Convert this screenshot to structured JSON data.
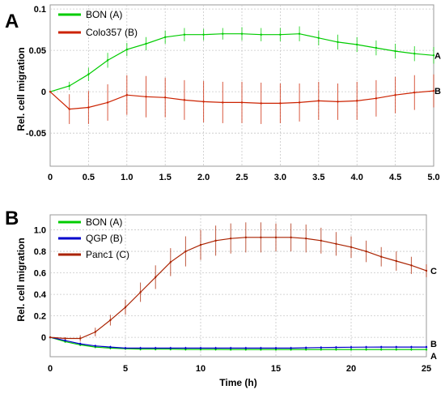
{
  "chart_data": [
    {
      "panel_label": "A",
      "type": "line",
      "xlabel": "",
      "ylabel": "Rel. cell migration",
      "xlim": [
        0,
        5
      ],
      "ylim": [
        -0.09,
        0.105
      ],
      "x_ticks": [
        "0",
        "0.5",
        "1.0",
        "1.5",
        "2.0",
        "2.5",
        "3.0",
        "3.5",
        "4.0",
        "4.5",
        "5.0"
      ],
      "x_tick_values": [
        0,
        0.5,
        1,
        1.5,
        2,
        2.5,
        3,
        3.5,
        4,
        4.5,
        5
      ],
      "y_ticks": [
        "0.1",
        "0.05",
        "0",
        "-0.05"
      ],
      "y_tick_values": [
        0.1,
        0.05,
        0,
        -0.05
      ],
      "grid": true,
      "legend_position": "top-left",
      "series": [
        {
          "name": "BON (A)",
          "end_label": "A",
          "color": "#00cc00",
          "x": [
            0,
            0.25,
            0.5,
            0.75,
            1,
            1.25,
            1.5,
            1.75,
            2,
            2.25,
            2.5,
            2.75,
            3,
            3.25,
            3.5,
            3.75,
            4,
            4.25,
            4.5,
            4.75,
            5
          ],
          "y": [
            0,
            0.007,
            0.021,
            0.038,
            0.051,
            0.058,
            0.066,
            0.069,
            0.069,
            0.07,
            0.07,
            0.069,
            0.069,
            0.07,
            0.065,
            0.06,
            0.057,
            0.053,
            0.049,
            0.046,
            0.044
          ],
          "error": [
            0,
            0.005,
            0.008,
            0.009,
            0.008,
            0.008,
            0.008,
            0.008,
            0.007,
            0.007,
            0.008,
            0.008,
            0.008,
            0.009,
            0.009,
            0.009,
            0.009,
            0.009,
            0.009,
            0.009,
            0.01
          ]
        },
        {
          "name": "Colo357 (B)",
          "end_label": "B",
          "color": "#cc2200",
          "x": [
            0,
            0.25,
            0.5,
            0.75,
            1,
            1.25,
            1.5,
            1.75,
            2,
            2.25,
            2.5,
            2.75,
            3,
            3.25,
            3.5,
            3.75,
            4,
            4.25,
            4.5,
            4.75,
            5
          ],
          "y": [
            0,
            -0.021,
            -0.019,
            -0.013,
            -0.004,
            -0.006,
            -0.007,
            -0.01,
            -0.012,
            -0.013,
            -0.013,
            -0.014,
            -0.014,
            -0.013,
            -0.011,
            -0.012,
            -0.011,
            -0.008,
            -0.004,
            -0.001,
            0.001
          ],
          "error": [
            0,
            0.018,
            0.02,
            0.022,
            0.024,
            0.025,
            0.024,
            0.024,
            0.025,
            0.025,
            0.025,
            0.025,
            0.024,
            0.023,
            0.023,
            0.022,
            0.023,
            0.022,
            0.022,
            0.021,
            0.02
          ]
        }
      ]
    },
    {
      "panel_label": "B",
      "type": "line",
      "xlabel": "Time (h)",
      "ylabel": "Rel. cell migration",
      "xlim": [
        0,
        25
      ],
      "ylim": [
        -0.18,
        1.14
      ],
      "x_ticks": [
        "0",
        "5",
        "10",
        "15",
        "20",
        "25"
      ],
      "x_tick_values": [
        0,
        5,
        10,
        15,
        20,
        25
      ],
      "y_ticks": [
        "1.0",
        "0.8",
        "0.6",
        "0.4",
        "0.2",
        "0"
      ],
      "y_tick_values": [
        1.0,
        0.8,
        0.6,
        0.4,
        0.2,
        0
      ],
      "grid": true,
      "legend_position": "top-left",
      "series": [
        {
          "name": "BON (A)",
          "end_label": "A",
          "color": "#00cc00",
          "x": [
            0,
            1,
            2,
            3,
            4,
            5,
            6,
            7,
            8,
            9,
            10,
            11,
            12,
            13,
            14,
            15,
            16,
            17,
            18,
            19,
            20,
            21,
            22,
            23,
            24,
            25
          ],
          "y": [
            0,
            -0.04,
            -0.07,
            -0.09,
            -0.1,
            -0.105,
            -0.11,
            -0.11,
            -0.11,
            -0.112,
            -0.112,
            -0.112,
            -0.113,
            -0.113,
            -0.113,
            -0.113,
            -0.113,
            -0.113,
            -0.113,
            -0.113,
            -0.113,
            -0.113,
            -0.113,
            -0.113,
            -0.113,
            -0.113
          ],
          "error": [
            0,
            0.01,
            0.012,
            0.012,
            0.012,
            0.012,
            0.012,
            0.012,
            0.012,
            0.012,
            0.012,
            0.012,
            0.012,
            0.012,
            0.012,
            0.012,
            0.012,
            0.012,
            0.012,
            0.012,
            0.012,
            0.012,
            0.012,
            0.012,
            0.012,
            0.012
          ]
        },
        {
          "name": "QGP (B)",
          "end_label": "B",
          "color": "#0000cc",
          "x": [
            0,
            1,
            2,
            3,
            4,
            5,
            6,
            7,
            8,
            9,
            10,
            11,
            12,
            13,
            14,
            15,
            16,
            17,
            18,
            19,
            20,
            21,
            22,
            23,
            24,
            25
          ],
          "y": [
            0,
            -0.03,
            -0.06,
            -0.08,
            -0.09,
            -0.1,
            -0.1,
            -0.1,
            -0.1,
            -0.1,
            -0.1,
            -0.1,
            -0.1,
            -0.1,
            -0.1,
            -0.1,
            -0.1,
            -0.097,
            -0.095,
            -0.093,
            -0.092,
            -0.091,
            -0.09,
            -0.09,
            -0.09,
            -0.09
          ],
          "error": [
            0,
            0.01,
            0.012,
            0.012,
            0.012,
            0.012,
            0.012,
            0.012,
            0.012,
            0.012,
            0.012,
            0.012,
            0.012,
            0.012,
            0.012,
            0.012,
            0.012,
            0.012,
            0.012,
            0.012,
            0.012,
            0.012,
            0.012,
            0.012,
            0.012,
            0.012
          ]
        },
        {
          "name": "Panc1 (C)",
          "end_label": "C",
          "color": "#aa2200",
          "x": [
            0,
            1,
            2,
            3,
            4,
            5,
            6,
            7,
            8,
            9,
            10,
            11,
            12,
            13,
            14,
            15,
            16,
            17,
            18,
            19,
            20,
            21,
            22,
            23,
            24,
            25
          ],
          "y": [
            0,
            -0.01,
            -0.01,
            0.05,
            0.16,
            0.28,
            0.42,
            0.56,
            0.7,
            0.8,
            0.86,
            0.9,
            0.92,
            0.93,
            0.93,
            0.93,
            0.93,
            0.92,
            0.9,
            0.87,
            0.84,
            0.8,
            0.75,
            0.71,
            0.67,
            0.62
          ],
          "error": [
            0,
            0.01,
            0.03,
            0.04,
            0.05,
            0.07,
            0.09,
            0.11,
            0.13,
            0.14,
            0.14,
            0.14,
            0.14,
            0.14,
            0.14,
            0.13,
            0.13,
            0.13,
            0.12,
            0.11,
            0.1,
            0.1,
            0.09,
            0.09,
            0.08,
            0.06
          ]
        }
      ]
    }
  ]
}
